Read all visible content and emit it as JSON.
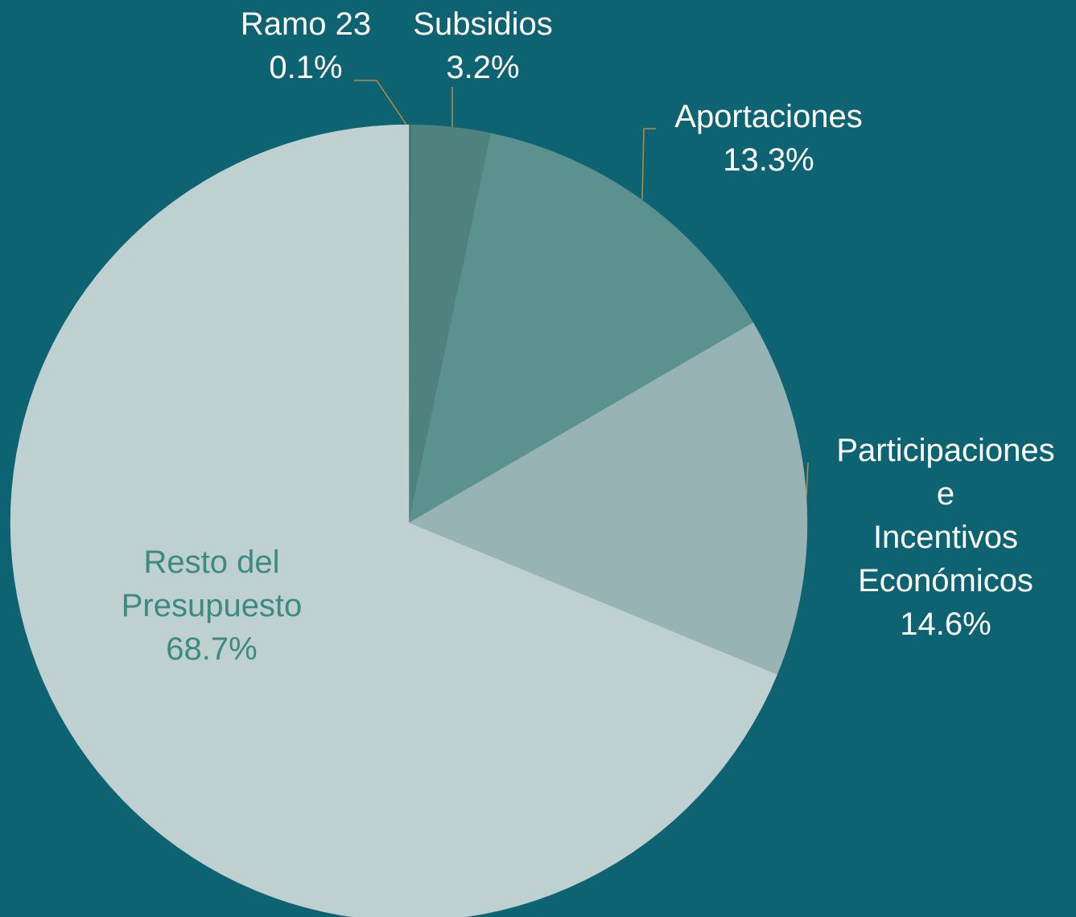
{
  "chart_data": {
    "type": "pie",
    "categories": [
      "Ramo 23",
      "Subsidios",
      "Aportaciones",
      "Participaciones e Incentivos Económicos",
      "Resto del Presupuesto"
    ],
    "values": [
      0.1,
      3.2,
      13.3,
      14.6,
      68.7
    ],
    "value_labels": [
      "0.1%",
      "3.2%",
      "13.3%",
      "14.6%",
      "68.7%"
    ],
    "colors": [
      "#3c6f70",
      "#4f817f",
      "#5b918f",
      "#97b3b3",
      "#bfd0d0"
    ]
  }
}
